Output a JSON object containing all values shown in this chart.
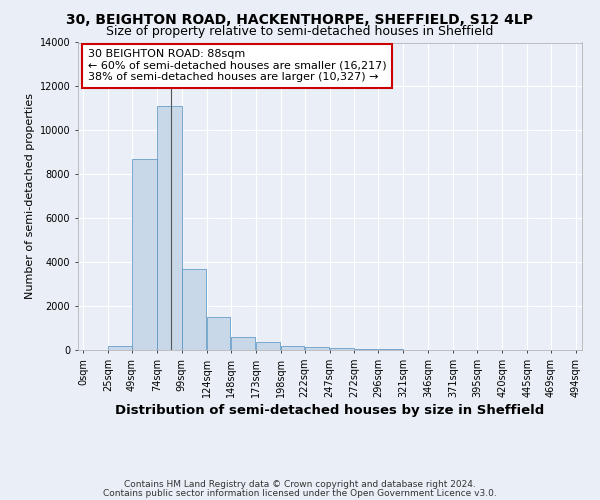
{
  "title": "30, BEIGHTON ROAD, HACKENTHORPE, SHEFFIELD, S12 4LP",
  "subtitle": "Size of property relative to semi-detached houses in Sheffield",
  "xlabel": "Distribution of semi-detached houses by size in Sheffield",
  "ylabel": "Number of semi-detached properties",
  "footnote1": "Contains HM Land Registry data © Crown copyright and database right 2024.",
  "footnote2": "Contains public sector information licensed under the Open Government Licence v3.0.",
  "annotation_line1": "30 BEIGHTON ROAD: 88sqm",
  "annotation_line2": "← 60% of semi-detached houses are smaller (16,217)",
  "annotation_line3": "38% of semi-detached houses are larger (10,327) →",
  "property_size": 88,
  "bar_color": "#c8d8e8",
  "bar_edge_color": "#5090c0",
  "annotation_box_color": "#cc0000",
  "ylim": [
    0,
    14000
  ],
  "bar_heights": [
    0,
    200,
    8700,
    11100,
    3700,
    1500,
    600,
    350,
    200,
    130,
    80,
    50,
    30,
    20,
    10,
    10,
    5,
    5,
    5,
    5
  ],
  "bin_edges": [
    0,
    25,
    49,
    74,
    99,
    124,
    148,
    173,
    198,
    222,
    247,
    272,
    296,
    321,
    346,
    371,
    395,
    420,
    445,
    469,
    494
  ],
  "tick_labels": [
    "0sqm",
    "25sqm",
    "49sqm",
    "74sqm",
    "99sqm",
    "124sqm",
    "148sqm",
    "173sqm",
    "198sqm",
    "222sqm",
    "247sqm",
    "272sqm",
    "296sqm",
    "321sqm",
    "346sqm",
    "371sqm",
    "395sqm",
    "420sqm",
    "445sqm",
    "469sqm",
    "494sqm"
  ],
  "ytick_labels": [
    "0",
    "2000",
    "4000",
    "6000",
    "8000",
    "10000",
    "12000",
    "14000"
  ],
  "ytick_values": [
    0,
    2000,
    4000,
    6000,
    8000,
    10000,
    12000,
    14000
  ],
  "background_color": "#eaeff7",
  "grid_color": "#ffffff",
  "title_fontsize": 10,
  "subtitle_fontsize": 9,
  "xlabel_fontsize": 9.5,
  "ylabel_fontsize": 8,
  "tick_fontsize": 7,
  "annotation_fontsize": 8,
  "footnote_fontsize": 6.5
}
